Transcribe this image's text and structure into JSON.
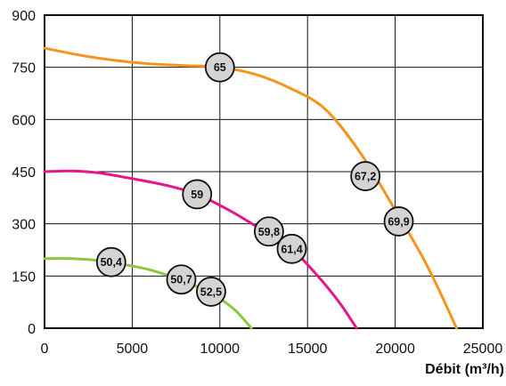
{
  "chart_data": {
    "type": "line",
    "title": "",
    "xlabel": "Débit (m³/h)",
    "ylabel": "",
    "xlim": [
      0,
      25000
    ],
    "ylim": [
      0,
      900
    ],
    "x_ticks": [
      "0",
      "5000",
      "10000",
      "15000",
      "20000",
      "25000"
    ],
    "y_ticks": [
      "0",
      "150",
      "300",
      "450",
      "600",
      "750",
      "900"
    ],
    "grid": true,
    "series": [
      {
        "color": "#f7941d",
        "x": [
          0,
          2000,
          4000,
          6000,
          8000,
          10000,
          12000,
          14000,
          16000,
          18000,
          20000,
          21500,
          22500,
          23500
        ],
        "y": [
          805,
          785,
          770,
          760,
          755,
          750,
          730,
          690,
          630,
          505,
          340,
          210,
          110,
          0
        ]
      },
      {
        "color": "#e5168c",
        "x": [
          0,
          1500,
          3000,
          5000,
          7000,
          8700,
          10500,
          12000,
          13000,
          14100,
          15500,
          16800,
          17800
        ],
        "y": [
          450,
          452,
          447,
          430,
          410,
          385,
          340,
          295,
          262,
          228,
          155,
          75,
          0
        ]
      },
      {
        "color": "#8cc63f",
        "x": [
          0,
          1500,
          3000,
          4500,
          6000,
          7800,
          9500,
          10800,
          11800
        ],
        "y": [
          200,
          200,
          195,
          183,
          168,
          138,
          100,
          55,
          0
        ]
      }
    ],
    "annotations": [
      {
        "text": "65",
        "x": 10000,
        "y": 750
      },
      {
        "text": "67,2",
        "x": 18300,
        "y": 437
      },
      {
        "text": "69,9",
        "x": 20200,
        "y": 307
      },
      {
        "text": "59",
        "x": 8700,
        "y": 385
      },
      {
        "text": "59,8",
        "x": 12800,
        "y": 278
      },
      {
        "text": "61,4",
        "x": 14100,
        "y": 228
      },
      {
        "text": "50,4",
        "x": 3800,
        "y": 190
      },
      {
        "text": "50,7",
        "x": 7800,
        "y": 140
      },
      {
        "text": "52,5",
        "x": 9500,
        "y": 105
      }
    ]
  }
}
